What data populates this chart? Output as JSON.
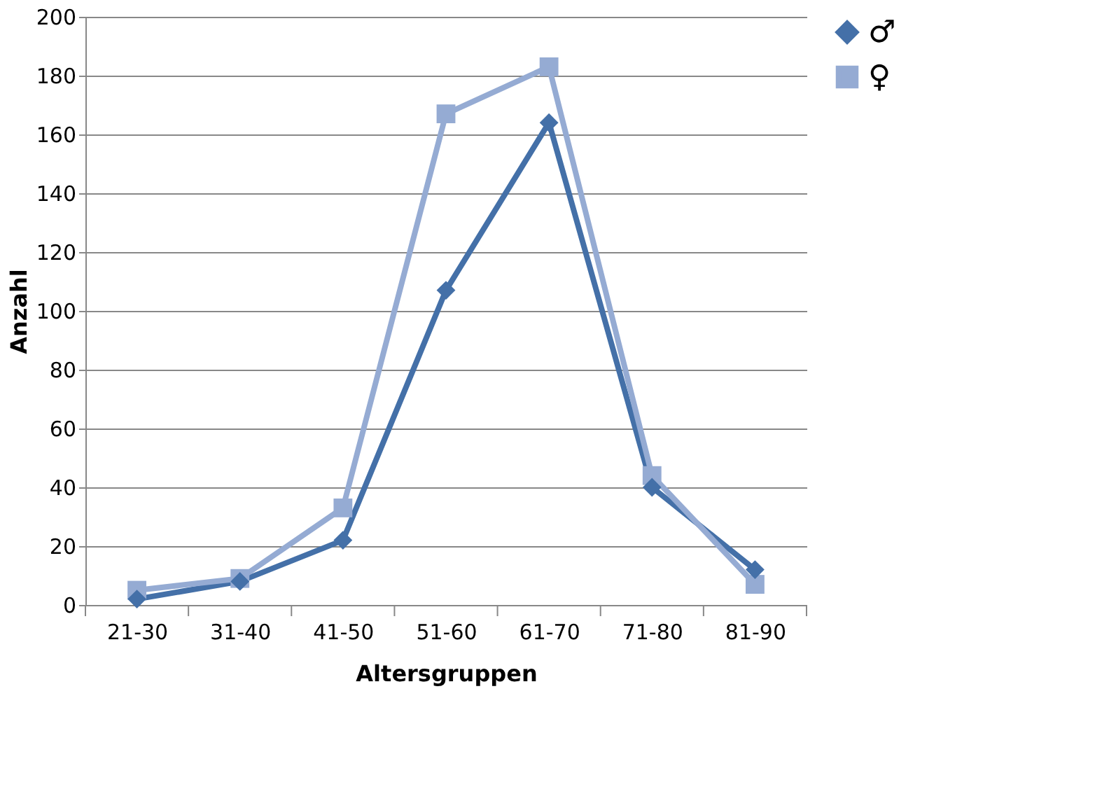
{
  "chart_data": {
    "type": "line",
    "xlabel": "Altersgruppen",
    "ylabel": "Anzahl",
    "categories": [
      "21-30",
      "31-40",
      "41-50",
      "51-60",
      "61-70",
      "71-80",
      "81-90"
    ],
    "series": [
      {
        "name": "♂",
        "color": "#4470a8",
        "marker": "diamond",
        "values": [
          2,
          8,
          22,
          107,
          164,
          40,
          12
        ]
      },
      {
        "name": "♀",
        "color": "#95abd3",
        "marker": "square",
        "values": [
          5,
          9,
          33,
          167,
          183,
          44,
          7
        ]
      }
    ],
    "ylim": [
      0,
      200
    ],
    "yticks": [
      0,
      20,
      40,
      60,
      80,
      100,
      120,
      140,
      160,
      180,
      200
    ],
    "grid": "y",
    "legend": "right",
    "line_style": "solid"
  }
}
